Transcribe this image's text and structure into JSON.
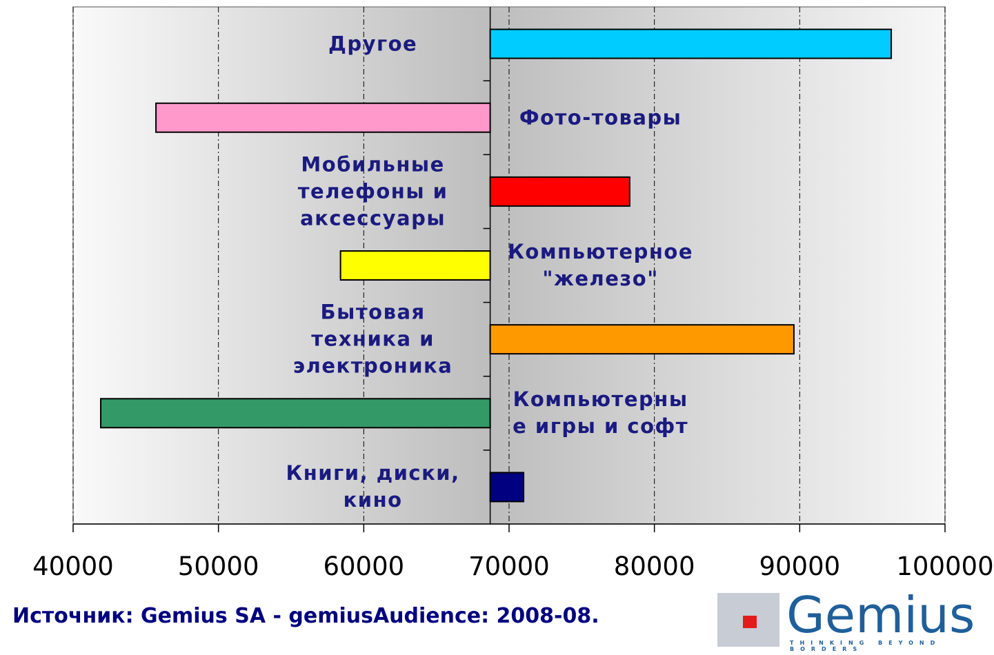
{
  "chart_data": {
    "type": "hbar",
    "categories": [
      "Другое",
      "Фото-товары",
      "Мобильные\nтелефоны и\nаксессуары",
      "Компьютерное\n\"железо\"",
      "Бытовая\nтехника и\nэлектроника",
      "Компьютерны\nе игры и софт",
      "Книги, диски,\nкино"
    ],
    "values": [
      96300,
      45700,
      78300,
      58400,
      89600,
      41900,
      71000
    ],
    "colors": [
      "#00ccff",
      "#ff99cc",
      "#ff0000",
      "#ffff00",
      "#ff9900",
      "#339966",
      "#000080"
    ],
    "base": 68700,
    "xlim": [
      40000,
      100000
    ],
    "xticks": [
      40000,
      50000,
      60000,
      70000,
      80000,
      90000,
      100000
    ],
    "grid": true,
    "source": "Источник: Gemius SA - gemiusAudience: 2008-08.",
    "logo": {
      "name": "Gemius",
      "tagline": "THINKING BEYOND BORDERS"
    }
  }
}
